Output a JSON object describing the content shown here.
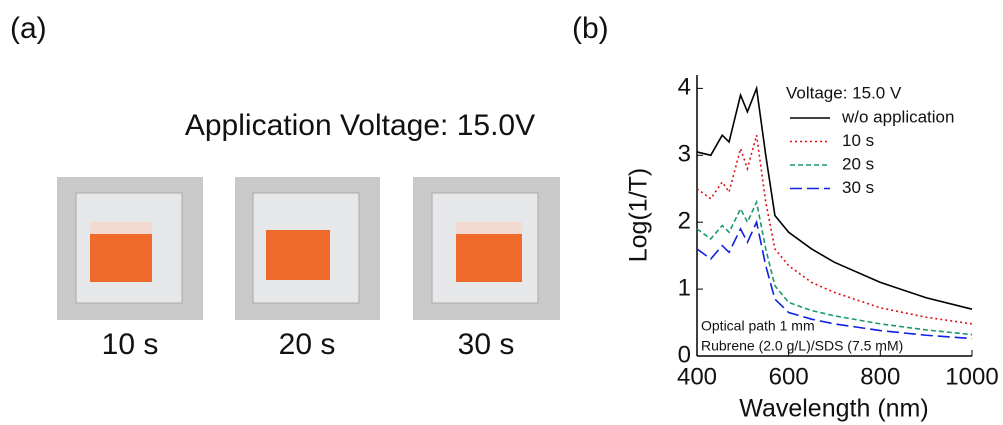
{
  "panel_a": {
    "label": "(a)",
    "title": "Application Voltage: 15.0V",
    "captions": [
      "10 s",
      "20 s",
      "30 s"
    ]
  },
  "chart_data": {
    "type": "line",
    "panel_label": "(b)",
    "xlabel": "Wavelength (nm)",
    "ylabel": "Log(1/T)",
    "legend_title": "Voltage: 15.0 V",
    "annotations": [
      "Optical path 1 mm",
      "Rubrene (2.0 g/L)/SDS (7.5 mM)"
    ],
    "x": [
      400,
      430,
      455,
      470,
      495,
      510,
      530,
      550,
      570,
      600,
      650,
      700,
      800,
      900,
      1000
    ],
    "series": [
      {
        "name": "w/o application",
        "color": "#000000",
        "linestyle": "solid",
        "values": [
          3.05,
          3.0,
          3.3,
          3.2,
          3.9,
          3.65,
          4.0,
          3.0,
          2.1,
          1.85,
          1.6,
          1.4,
          1.1,
          0.87,
          0.7
        ]
      },
      {
        "name": "10 s",
        "color": "#e01010",
        "linestyle": "dotted",
        "values": [
          2.5,
          2.35,
          2.6,
          2.45,
          3.1,
          2.8,
          3.3,
          2.3,
          1.6,
          1.35,
          1.1,
          0.95,
          0.72,
          0.58,
          0.48
        ]
      },
      {
        "name": "20 s",
        "color": "#1a9a6a",
        "linestyle": "dashed",
        "values": [
          1.9,
          1.75,
          1.95,
          1.85,
          2.2,
          2.0,
          2.3,
          1.6,
          1.05,
          0.8,
          0.68,
          0.6,
          0.48,
          0.39,
          0.32
        ]
      },
      {
        "name": "30 s",
        "color": "#1020e0",
        "linestyle": "longdash",
        "values": [
          1.6,
          1.45,
          1.65,
          1.55,
          1.9,
          1.7,
          2.0,
          1.35,
          0.85,
          0.65,
          0.55,
          0.48,
          0.38,
          0.31,
          0.26
        ]
      }
    ],
    "xlim": [
      400,
      1000
    ],
    "xticks": [
      400,
      600,
      800,
      1000
    ],
    "ylim": [
      0,
      4.2
    ],
    "yticks": [
      0,
      1,
      2,
      3,
      4
    ]
  }
}
